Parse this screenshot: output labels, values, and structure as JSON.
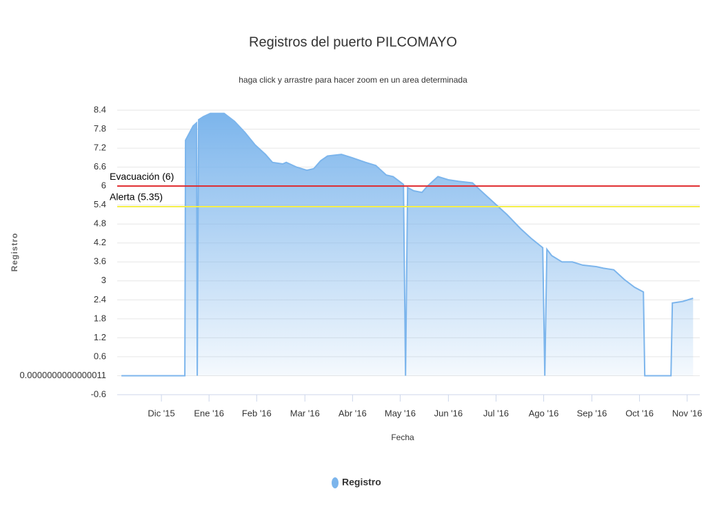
{
  "chart_data": {
    "type": "area",
    "title": "Registros del puerto PILCOMAYO",
    "subtitle": "haga click y arrastre para hacer zoom en un area determinada",
    "x_label": "Fecha",
    "y_label": "Registro",
    "xlim": [
      2015.84,
      2016.855
    ],
    "xticks": [
      {
        "value": 2015.917,
        "label": "Dic '15"
      },
      {
        "value": 2016.0,
        "label": "Ene '16"
      },
      {
        "value": 2016.083,
        "label": "Feb '16"
      },
      {
        "value": 2016.167,
        "label": "Mar '16"
      },
      {
        "value": 2016.25,
        "label": "Abr '16"
      },
      {
        "value": 2016.333,
        "label": "May '16"
      },
      {
        "value": 2016.417,
        "label": "Jun '16"
      },
      {
        "value": 2016.5,
        "label": "Jul '16"
      },
      {
        "value": 2016.583,
        "label": "Ago '16"
      },
      {
        "value": 2016.667,
        "label": "Sep '16"
      },
      {
        "value": 2016.75,
        "label": "Oct '16"
      },
      {
        "value": 2016.833,
        "label": "Nov '16"
      }
    ],
    "ylim": [
      -0.6,
      8.4
    ],
    "yticks": [
      -0.6,
      {
        "value": 1.1e-15,
        "label": "0.0000000000000011"
      },
      0.6,
      1.2,
      1.8,
      2.4,
      3,
      3.6,
      4.2,
      4.8,
      5.4,
      6,
      6.6,
      7.2,
      7.8,
      8.4
    ],
    "grid": true,
    "plot_lines": [
      {
        "value": 6,
        "label": "Evacuación (6)",
        "color": "#e0282c"
      },
      {
        "value": 5.35,
        "label": "Alerta (5.35)",
        "color": "#f4ef4a"
      }
    ],
    "series": [
      {
        "name": "Registro",
        "color": "#7cb5ec",
        "x": [
          2015.8473,
          2015.9578,
          2015.959,
          2015.9723,
          2015.9783,
          2015.9795,
          2015.9819,
          2015.9903,
          2016.0023,
          2016.0263,
          2016.0443,
          2016.0624,
          2016.0804,
          2016.0984,
          2016.1104,
          2016.1284,
          2016.1345,
          2016.1525,
          2016.1705,
          2016.1825,
          2016.1945,
          2016.2065,
          2016.2306,
          2016.2486,
          2016.2726,
          2016.2906,
          2016.3087,
          2016.3207,
          2016.3387,
          2016.3423,
          2016.3459,
          2016.3567,
          2016.3711,
          2016.3807,
          2016.3988,
          2016.4168,
          2016.4348,
          2016.4588,
          2016.4768,
          2016.4949,
          2016.5189,
          2016.5429,
          2016.561,
          2016.5814,
          2016.585,
          2016.5886,
          2016.597,
          2016.615,
          2016.633,
          2016.6511,
          2016.6751,
          2016.6871,
          2016.7051,
          2016.7231,
          2016.7412,
          2016.7568,
          2016.7592,
          2016.8048,
          2016.8072,
          2016.8252,
          2016.8433
        ],
        "values": [
          0,
          0,
          7.45,
          7.9,
          8.0,
          0,
          8.1,
          8.2,
          8.3,
          8.3,
          8.05,
          7.7,
          7.3,
          7.0,
          6.75,
          6.7,
          6.75,
          6.6,
          6.5,
          6.55,
          6.8,
          6.95,
          7.0,
          6.9,
          6.75,
          6.65,
          6.35,
          6.3,
          6.05,
          0,
          5.95,
          5.85,
          5.8,
          6.0,
          6.3,
          6.2,
          6.15,
          6.1,
          5.8,
          5.5,
          5.1,
          4.65,
          4.35,
          4.05,
          0,
          4.0,
          3.8,
          3.6,
          3.6,
          3.5,
          3.45,
          3.4,
          3.35,
          3.05,
          2.8,
          2.65,
          0,
          0,
          2.3,
          2.35,
          2.45
        ]
      }
    ]
  }
}
